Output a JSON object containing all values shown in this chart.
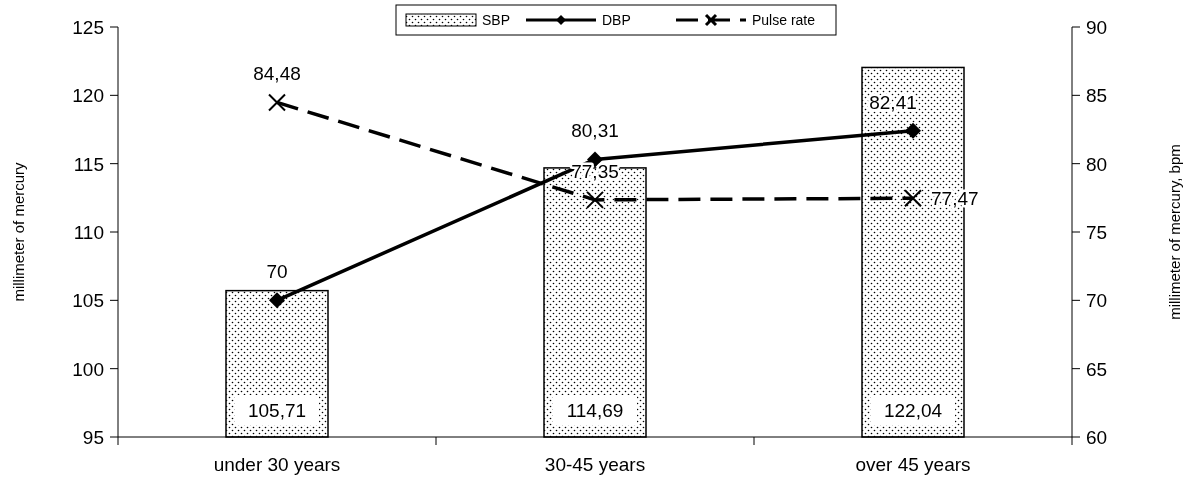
{
  "chart_data": {
    "type": "bar",
    "categories": [
      "under 30 years",
      "30-45 years",
      "over 45 years"
    ],
    "ylabel": "millimeter of mercury",
    "y2label": "millimeter of mercury, bpm",
    "ylim": [
      95,
      125
    ],
    "yticks": [
      95,
      100,
      105,
      110,
      115,
      120,
      125
    ],
    "y2lim": [
      60,
      90
    ],
    "y2ticks": [
      60,
      65,
      70,
      75,
      80,
      85,
      90
    ],
    "legend": "top",
    "grid": false,
    "series": [
      {
        "name": "SBP",
        "color": "#000000",
        "values": [
          105.71,
          114.69,
          122.04
        ],
        "value_labels": [
          "105,71",
          "114,69",
          "122,04"
        ]
      },
      {
        "name": "DBP",
        "type": "line",
        "axis": "y2",
        "color": "#000000",
        "marker": "diamond",
        "line_style": "solid",
        "values": [
          70,
          80.31,
          82.41
        ],
        "value_labels": [
          "70",
          "80,31",
          "82,41"
        ]
      },
      {
        "name": "Pulse rate",
        "type": "line",
        "axis": "y2",
        "color": "#000000",
        "marker": "cross",
        "line_style": "dashed",
        "values": [
          84.48,
          77.35,
          77.47
        ],
        "value_labels": [
          "84,48",
          "77,35",
          "77,47"
        ]
      }
    ]
  }
}
